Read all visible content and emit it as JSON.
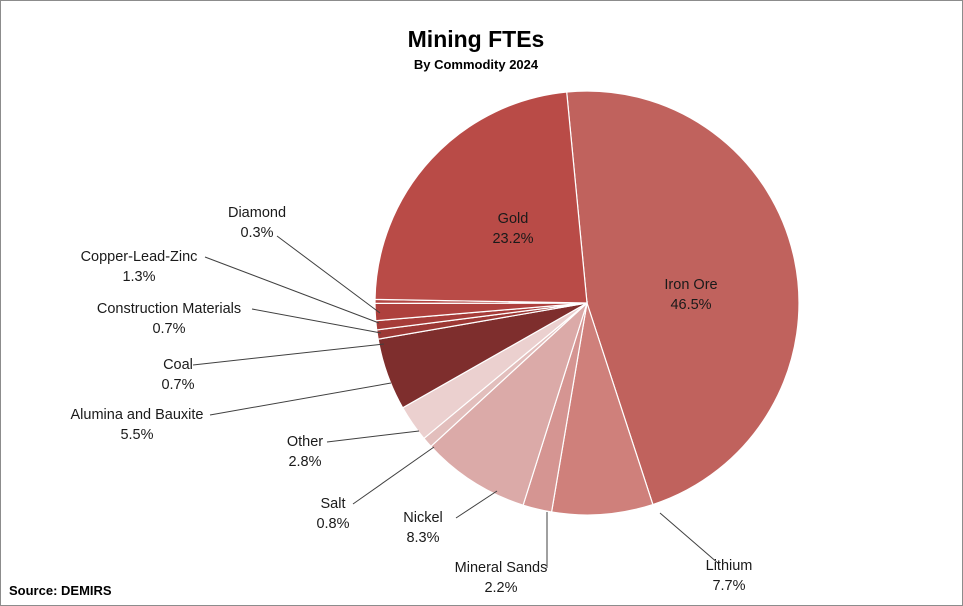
{
  "chart_data": {
    "type": "pie",
    "title": "Mining FTEs",
    "subtitle": "By Commodity 2024",
    "source": "Source:  DEMIRS",
    "slices": [
      {
        "name": "Iron Ore",
        "label": "46.5%",
        "value": 46.5,
        "color": "#c0625d"
      },
      {
        "name": "Lithium",
        "label": "7.7%",
        "value": 7.7,
        "color": "#cf807b"
      },
      {
        "name": "Mineral Sands",
        "label": "2.2%",
        "value": 2.2,
        "color": "#d59592"
      },
      {
        "name": "Nickel",
        "label": "8.3%",
        "value": 8.3,
        "color": "#dbaaa8"
      },
      {
        "name": "Salt",
        "label": "0.8%",
        "value": 0.8,
        "color": "#e2bebc"
      },
      {
        "name": "Other",
        "label": "2.8%",
        "value": 2.8,
        "color": "#ebd0cf"
      },
      {
        "name": "Alumina and Bauxite",
        "label": "5.5%",
        "value": 5.5,
        "color": "#7e2e2d"
      },
      {
        "name": "Coal",
        "label": "0.7%",
        "value": 0.7,
        "color": "#9c3835"
      },
      {
        "name": "Construction Materials",
        "label": "0.7%",
        "value": 0.7,
        "color": "#a63c39"
      },
      {
        "name": "Copper-Lead-Zinc",
        "label": "1.3%",
        "value": 1.3,
        "color": "#ae403d"
      },
      {
        "name": "Diamond",
        "label": "0.3%",
        "value": 0.3,
        "color": "#b34542"
      },
      {
        "name": "Gold",
        "label": "23.2%",
        "value": 23.2,
        "color": "#b94b47"
      }
    ]
  }
}
